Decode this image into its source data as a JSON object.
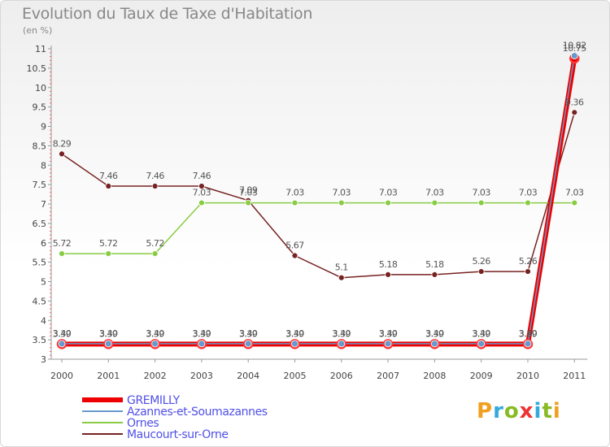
{
  "title": "Evolution du Taux de Taxe d'Habitation",
  "subtitle": "(en %)",
  "logo": [
    "P",
    "r",
    "o",
    "x",
    "i",
    "t",
    "i"
  ],
  "chart_data": {
    "type": "line",
    "x": [
      "2000",
      "2001",
      "2002",
      "2003",
      "2004",
      "2005",
      "2006",
      "2007",
      "2008",
      "2009",
      "2010",
      "2011"
    ],
    "ylim": [
      3,
      11
    ],
    "yticks": [
      "3",
      "3.5",
      "4",
      "4.5",
      "5",
      "5.5",
      "6",
      "6.5",
      "7",
      "7.5",
      "8",
      "8.5",
      "9",
      "9.5",
      "10",
      "10.5",
      "11"
    ],
    "grid": false,
    "legend_position": "bottom-left",
    "series": [
      {
        "name": "GREMILLY",
        "color": "#ee0000",
        "values": [
          3.39,
          3.39,
          3.39,
          3.39,
          3.39,
          3.39,
          3.39,
          3.39,
          3.39,
          3.39,
          3.39,
          10.75
        ],
        "labels": [
          "3.39",
          "3.39",
          "3.39",
          "3.39",
          "3.39",
          "3.39",
          "3.39",
          "3.39",
          "3.39",
          "3.39",
          "3.39",
          "10.75"
        ]
      },
      {
        "name": "Azannes-et-Soumazannes",
        "color": "#6699cc",
        "values": [
          3.4,
          3.4,
          3.4,
          3.4,
          3.4,
          3.4,
          3.4,
          3.4,
          3.4,
          3.4,
          3.4,
          10.82
        ],
        "labels": [
          "3.40",
          "3.40",
          "3.40",
          "3.40",
          "3.40",
          "3.40",
          "3.40",
          "3.40",
          "3.40",
          "3.40",
          "3.40",
          "10.82"
        ]
      },
      {
        "name": "Ornes",
        "color": "#88cc44",
        "values": [
          5.72,
          5.72,
          5.72,
          7.03,
          7.03,
          7.03,
          7.03,
          7.03,
          7.03,
          7.03,
          7.03,
          7.03
        ],
        "labels": [
          "5.72",
          "5.72",
          "5.72",
          "7.03",
          "7.03",
          "7.03",
          "7.03",
          "7.03",
          "7.03",
          "7.03",
          "7.03",
          "7.03"
        ]
      },
      {
        "name": "Maucourt-sur-Orne",
        "color": "#772222",
        "values": [
          8.29,
          7.46,
          7.46,
          7.46,
          7.09,
          5.67,
          5.1,
          5.18,
          5.18,
          5.26,
          5.26,
          9.36
        ],
        "labels": [
          "8.29",
          "7.46",
          "7.46",
          "7.46",
          "7.09",
          "5.67",
          "5.1",
          "5.18",
          "5.18",
          "5.26",
          "5.26",
          "9.36"
        ]
      }
    ]
  }
}
